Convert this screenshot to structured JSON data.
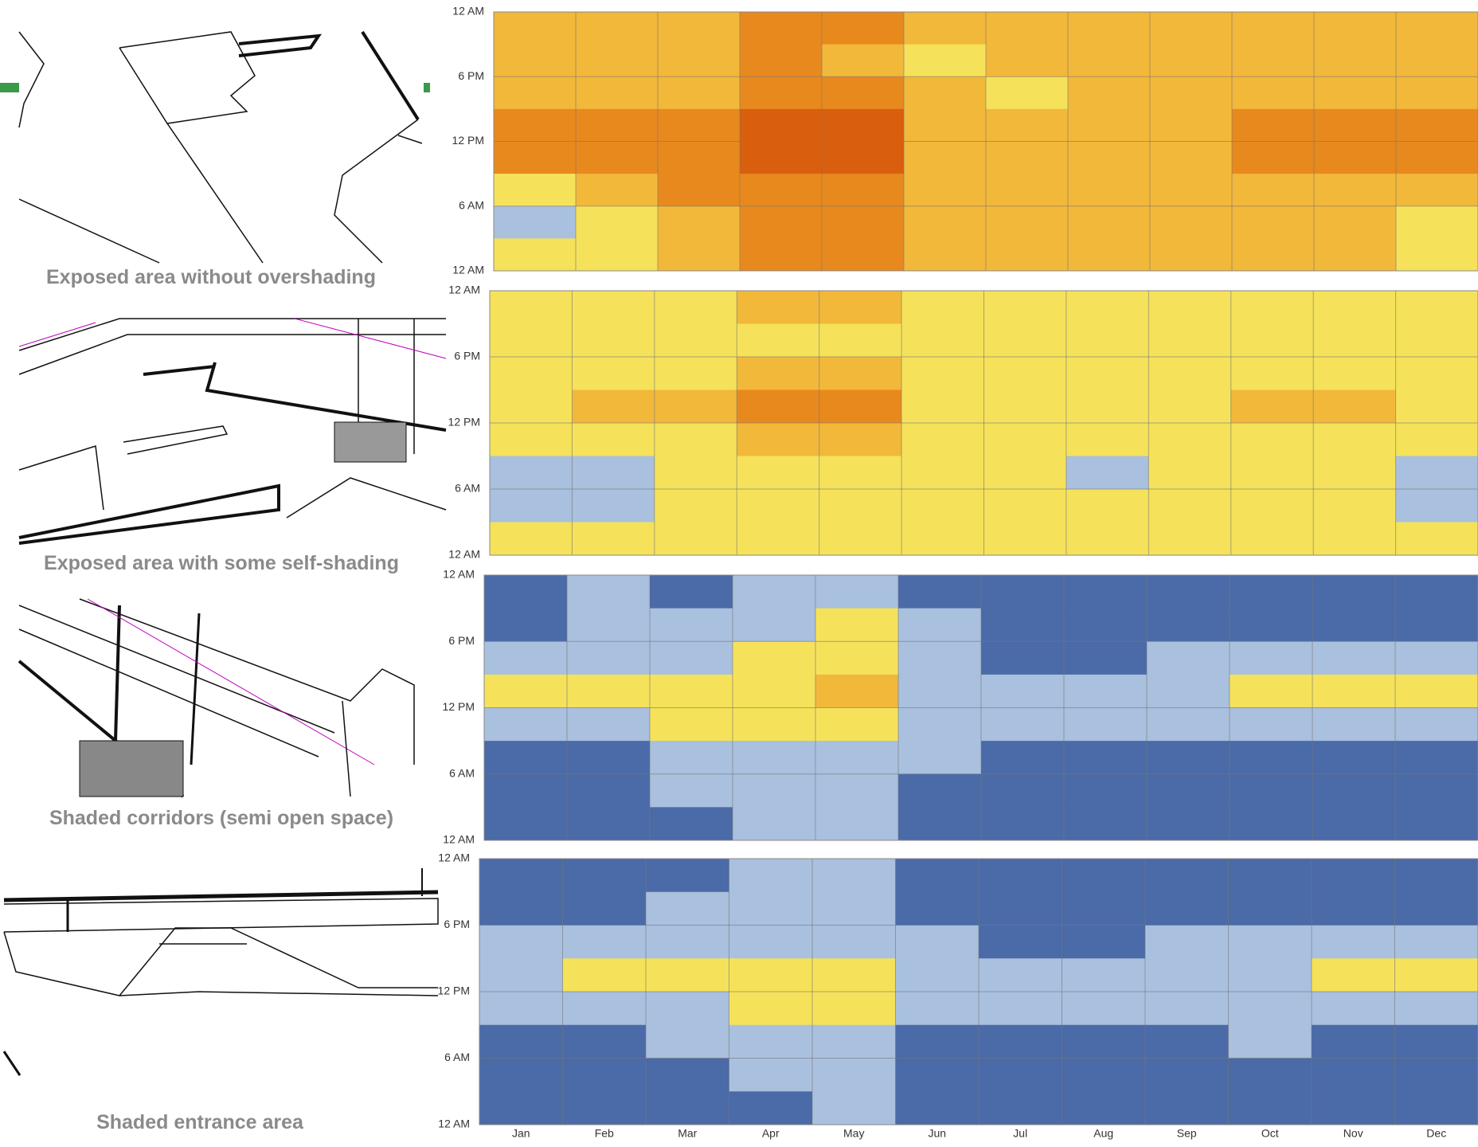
{
  "hour_labels": [
    "12 AM",
    "6 PM",
    "12 PM",
    "6 AM",
    "12 AM"
  ],
  "months": [
    "Jan",
    "Feb",
    "Mar",
    "Apr",
    "May",
    "Jun",
    "Jul",
    "Aug",
    "Sep",
    "Oct",
    "Nov",
    "Dec"
  ],
  "level_colors": [
    "#4a6aa8",
    "#a9c0de",
    "#f5e25a",
    "#f2b83a",
    "#e8891e",
    "#d95f0e"
  ],
  "panels": [
    {
      "caption": "Exposed area without  overshading",
      "cells": [
        [
          3,
          3,
          3,
          4,
          4,
          3,
          3,
          3,
          3,
          3,
          3,
          3
        ],
        [
          3,
          3,
          3,
          4,
          3,
          2,
          3,
          3,
          3,
          3,
          3,
          3
        ],
        [
          3,
          3,
          3,
          4,
          4,
          3,
          2,
          3,
          3,
          3,
          3,
          3
        ],
        [
          4,
          4,
          4,
          5,
          5,
          3,
          3,
          3,
          3,
          4,
          4,
          4
        ],
        [
          4,
          4,
          4,
          5,
          5,
          3,
          3,
          3,
          3,
          4,
          4,
          4
        ],
        [
          2,
          3,
          4,
          4,
          4,
          3,
          3,
          3,
          3,
          3,
          3,
          3
        ],
        [
          1,
          2,
          3,
          4,
          4,
          3,
          3,
          3,
          3,
          3,
          3,
          2
        ],
        [
          2,
          2,
          3,
          4,
          4,
          3,
          3,
          3,
          3,
          3,
          3,
          2
        ]
      ]
    },
    {
      "caption": "Exposed area with some self-shading",
      "cells": [
        [
          2,
          2,
          2,
          3,
          3,
          2,
          2,
          2,
          2,
          2,
          2,
          2
        ],
        [
          2,
          2,
          2,
          2,
          2,
          2,
          2,
          2,
          2,
          2,
          2,
          2
        ],
        [
          2,
          2,
          2,
          3,
          3,
          2,
          2,
          2,
          2,
          2,
          2,
          2
        ],
        [
          2,
          3,
          3,
          4,
          4,
          2,
          2,
          2,
          2,
          3,
          3,
          2
        ],
        [
          2,
          2,
          2,
          3,
          3,
          2,
          2,
          2,
          2,
          2,
          2,
          2
        ],
        [
          1,
          1,
          2,
          2,
          2,
          2,
          2,
          1,
          2,
          2,
          2,
          1
        ],
        [
          1,
          1,
          2,
          2,
          2,
          2,
          2,
          2,
          2,
          2,
          2,
          1
        ],
        [
          2,
          2,
          2,
          2,
          2,
          2,
          2,
          2,
          2,
          2,
          2,
          2
        ]
      ]
    },
    {
      "caption": "Shaded corridors (semi open space)",
      "cells": [
        [
          0,
          1,
          0,
          1,
          1,
          0,
          0,
          0,
          0,
          0,
          0,
          0
        ],
        [
          0,
          1,
          1,
          1,
          2,
          1,
          0,
          0,
          0,
          0,
          0,
          0
        ],
        [
          1,
          1,
          1,
          2,
          2,
          1,
          0,
          0,
          1,
          1,
          1,
          1
        ],
        [
          2,
          2,
          2,
          2,
          3,
          1,
          1,
          1,
          1,
          2,
          2,
          2
        ],
        [
          1,
          1,
          2,
          2,
          2,
          1,
          1,
          1,
          1,
          1,
          1,
          1
        ],
        [
          0,
          0,
          1,
          1,
          1,
          1,
          0,
          0,
          0,
          0,
          0,
          0
        ],
        [
          0,
          0,
          1,
          1,
          1,
          0,
          0,
          0,
          0,
          0,
          0,
          0
        ],
        [
          0,
          0,
          0,
          1,
          1,
          0,
          0,
          0,
          0,
          0,
          0,
          0
        ]
      ]
    },
    {
      "caption": "Shaded entrance area",
      "cells": [
        [
          0,
          0,
          0,
          1,
          1,
          0,
          0,
          0,
          0,
          0,
          0,
          0
        ],
        [
          0,
          0,
          1,
          1,
          1,
          0,
          0,
          0,
          0,
          0,
          0,
          0
        ],
        [
          1,
          1,
          1,
          1,
          1,
          1,
          0,
          0,
          1,
          1,
          1,
          1
        ],
        [
          1,
          2,
          2,
          2,
          2,
          1,
          1,
          1,
          1,
          1,
          2,
          2
        ],
        [
          1,
          1,
          1,
          2,
          2,
          1,
          1,
          1,
          1,
          1,
          1,
          1
        ],
        [
          0,
          0,
          1,
          1,
          1,
          0,
          0,
          0,
          0,
          1,
          0,
          0
        ],
        [
          0,
          0,
          0,
          1,
          1,
          0,
          0,
          0,
          0,
          0,
          0,
          0
        ],
        [
          0,
          0,
          0,
          0,
          1,
          0,
          0,
          0,
          0,
          0,
          0,
          0
        ]
      ]
    }
  ]
}
